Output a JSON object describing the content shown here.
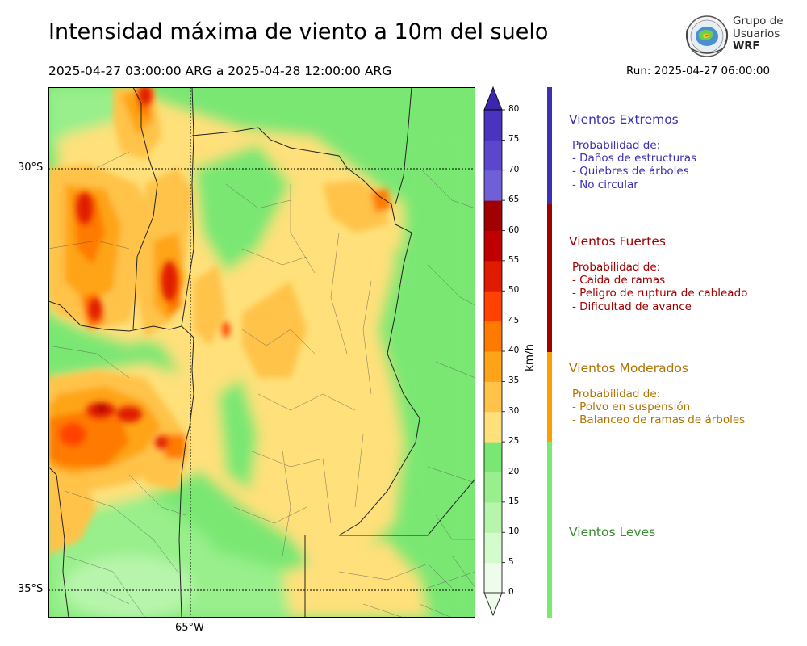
{
  "title": "Intensidad máxima de viento a 10m del suelo",
  "period": "2025-04-27 03:00:00 ARG  a  2025-04-28 12:00:00 ARG",
  "run": "Run: 2025-04-27 06:00:00",
  "logo": {
    "line1": "Grupo de",
    "line2": "Usuarios",
    "line3": "WRF"
  },
  "map": {
    "lat_labels": [
      "30°S",
      "35°S"
    ],
    "lon_labels": [
      "65°W"
    ],
    "gridlines": "dotted"
  },
  "colorbar": {
    "unit": "km/h",
    "ticks": [
      "0",
      "5",
      "10",
      "15",
      "20",
      "25",
      "30",
      "35",
      "40",
      "45",
      "50",
      "55",
      "60",
      "65",
      "70",
      "75",
      "80"
    ],
    "colors": [
      "#eefdeb",
      "#d4fbcb",
      "#b8f5ac",
      "#98ef8b",
      "#7ae773",
      "#ffe07a",
      "#ffc34a",
      "#ffa418",
      "#ff7a00",
      "#ff4200",
      "#e01b00",
      "#c00000",
      "#a00000",
      "#7060d8",
      "#5b46cc",
      "#4a33bf",
      "#3d25b0"
    ]
  },
  "categories": [
    {
      "name": "Vientos Extremos",
      "color": "#3a2fb5",
      "intro": "Probabilidad de:",
      "items": [
        "- Daños de estructuras",
        "- Quiebres de árboles",
        "- No circular"
      ]
    },
    {
      "name": "Vientos Fuertes",
      "color": "#a10000",
      "intro": "Probabilidad de:",
      "items": [
        "- Caida de ramas",
        "- Peligro de ruptura de cableado",
        "- Dificultad de avance"
      ]
    },
    {
      "name": "Vientos Moderados",
      "color": "#b07200",
      "intro": "Probabilidad de:",
      "items": [
        "- Polvo en suspensión",
        "- Balanceo de ramas de árboles"
      ]
    },
    {
      "name": "Vientos Leves",
      "color": "#3a8a34",
      "intro": "",
      "items": []
    }
  ],
  "category_bar_colors": [
    "#3a2fb5",
    "#a10000",
    "#ff9d00",
    "#78ea6e"
  ]
}
